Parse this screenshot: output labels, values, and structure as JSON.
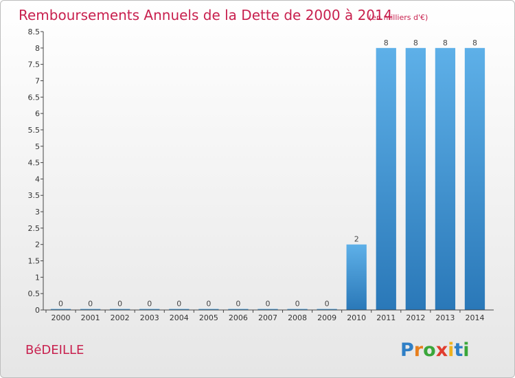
{
  "chart_data": {
    "type": "bar",
    "title": "Remboursements Annuels de la Dette de 2000 à 2014",
    "subtitle": "(en milliers d'€)",
    "categories": [
      "2000",
      "2001",
      "2002",
      "2003",
      "2004",
      "2005",
      "2006",
      "2007",
      "2008",
      "2009",
      "2010",
      "2011",
      "2012",
      "2013",
      "2014"
    ],
    "values": [
      0,
      0,
      0,
      0,
      0,
      0,
      0,
      0,
      0,
      0,
      2,
      8,
      8,
      8,
      8
    ],
    "data_labels": [
      "0",
      "0",
      "0",
      "0",
      "0",
      "0",
      "0",
      "0",
      "0",
      "0",
      "2",
      "8",
      "8",
      "8",
      "8"
    ],
    "ylim": [
      0,
      8.5
    ],
    "yticks": [
      "0",
      "0.5",
      "1",
      "1.5",
      "2",
      "2.5",
      "3",
      "3.5",
      "4",
      "4.5",
      "5",
      "5.5",
      "6",
      "6.5",
      "7",
      "7.5",
      "8",
      "8.5"
    ],
    "xlabel": "",
    "ylabel": "",
    "grid": false,
    "bar_color": "#3a8fd0"
  },
  "footer": {
    "commune": "BéDEILLE",
    "logo_text": "Proxiti"
  }
}
